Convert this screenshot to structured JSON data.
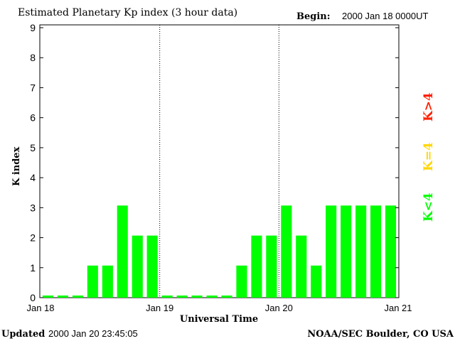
{
  "header": {
    "title": "Estimated Planetary Kp index (3 hour data)",
    "begin_label": "Begin:",
    "begin_value": "2000 Jan 18 0000UT"
  },
  "footer": {
    "updated_label": "Updated",
    "updated_value": "2000 Jan 20 23:45:05",
    "source": "NOAA/SEC Boulder, CO USA"
  },
  "legend": {
    "low": "K<4",
    "equal": "K=4",
    "high": "K>4",
    "colors": {
      "low": "#00ff00",
      "equal": "#ffd700",
      "high": "#ff2000"
    }
  },
  "chart_data": {
    "type": "bar",
    "xlabel": "Universal Time",
    "ylabel": "K index",
    "ylim": [
      0,
      9
    ],
    "yticks": [
      "0",
      "1",
      "2",
      "3",
      "4",
      "5",
      "6",
      "7",
      "8",
      "9"
    ],
    "xticks": [
      "Jan 18",
      "Jan 19",
      "Jan 20",
      "Jan 21"
    ],
    "values": [
      0,
      0,
      0,
      1,
      1,
      3,
      2,
      2,
      0,
      0,
      0,
      0,
      0,
      1,
      2,
      2,
      3,
      2,
      1,
      3,
      3,
      3,
      3,
      3
    ],
    "grid": "vertical dotted lines at day boundaries",
    "bar_color": "#00ff00"
  }
}
